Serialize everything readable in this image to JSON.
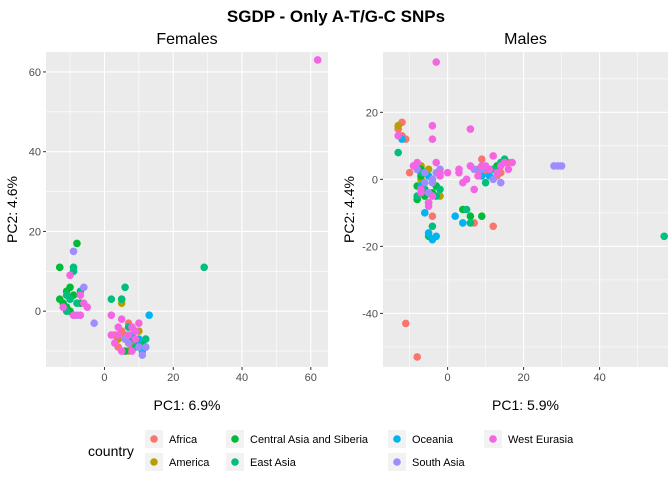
{
  "title": "SGDP - Only A-T/G-C SNPs",
  "legend": {
    "title": "country",
    "placement": "bottom",
    "entries": [
      {
        "name": "Africa",
        "color": "#F8766D"
      },
      {
        "name": "America",
        "color": "#B79F00"
      },
      {
        "name": "Central Asia and Siberia",
        "color": "#00BA38"
      },
      {
        "name": "East Asia",
        "color": "#00BF7D"
      },
      {
        "name": "Oceania",
        "color": "#00B4F0"
      },
      {
        "name": "South Asia",
        "color": "#9F8CFF"
      },
      {
        "name": "West Eurasia",
        "color": "#F564E3"
      }
    ]
  },
  "chart_data": [
    {
      "type": "scatter",
      "title": "Females",
      "xlabel": "PC1: 6.9%",
      "ylabel": "PC2: 4.6%",
      "xlim": [
        -17,
        65
      ],
      "ylim": [
        -14,
        65
      ],
      "xticks": [
        0,
        20,
        40,
        60
      ],
      "yticks": [
        0,
        20,
        40,
        60
      ],
      "grid": true,
      "series": [
        {
          "name": "Africa",
          "points": [
            [
              5,
              -5
            ],
            [
              7,
              -3
            ],
            [
              4,
              -9
            ],
            [
              8,
              -9
            ],
            [
              6,
              -6
            ],
            [
              9,
              -8
            ],
            [
              3,
              -6
            ],
            [
              11,
              -8
            ]
          ]
        },
        {
          "name": "America",
          "points": [
            [
              8,
              -4
            ],
            [
              5,
              2
            ],
            [
              10,
              -5
            ],
            [
              7,
              -10
            ],
            [
              6,
              -7
            ],
            [
              4,
              -7
            ]
          ]
        },
        {
          "name": "Central Asia and Siberia",
          "points": [
            [
              -13,
              11
            ],
            [
              -8,
              17
            ],
            [
              -11,
              5
            ],
            [
              -13,
              3
            ],
            [
              -11,
              1
            ],
            [
              -10,
              6
            ],
            [
              -12,
              2
            ],
            [
              -9,
              4
            ],
            [
              -10,
              0
            ],
            [
              -7,
              2
            ],
            [
              6,
              -10
            ],
            [
              8,
              -7
            ],
            [
              11,
              -8
            ],
            [
              5,
              3
            ]
          ]
        },
        {
          "name": "East Asia",
          "points": [
            [
              -9,
              10
            ],
            [
              -7,
              5
            ],
            [
              -9,
              11
            ],
            [
              -10,
              3
            ],
            [
              -11,
              4
            ],
            [
              -8,
              2
            ],
            [
              -11,
              0
            ],
            [
              -9,
              -1
            ],
            [
              2,
              3
            ],
            [
              5,
              3
            ],
            [
              6,
              6
            ],
            [
              29,
              11
            ],
            [
              7,
              -4
            ],
            [
              10,
              -8
            ],
            [
              12,
              -7
            ],
            [
              9,
              -9
            ]
          ]
        },
        {
          "name": "Oceania",
          "points": [
            [
              13,
              -1
            ],
            [
              8,
              -6
            ],
            [
              10,
              -7
            ],
            [
              12,
              -9
            ],
            [
              11,
              -10
            ]
          ]
        },
        {
          "name": "South Asia",
          "points": [
            [
              -9,
              15
            ],
            [
              -3,
              -3
            ],
            [
              -6,
              6
            ],
            [
              -8,
              -1
            ],
            [
              6,
              -7
            ],
            [
              9,
              -5
            ],
            [
              11,
              -11
            ],
            [
              12,
              -9
            ],
            [
              7,
              -8
            ],
            [
              10,
              -9
            ]
          ]
        },
        {
          "name": "West Eurasia",
          "points": [
            [
              62,
              63
            ],
            [
              -10,
              9
            ],
            [
              -7,
              4
            ],
            [
              -9,
              -1
            ],
            [
              -7,
              -1
            ],
            [
              -12,
              1
            ],
            [
              -6,
              2
            ],
            [
              -5,
              1
            ],
            [
              2,
              -1
            ],
            [
              2,
              -6
            ],
            [
              5,
              -2
            ],
            [
              4,
              -4
            ],
            [
              7,
              -6
            ],
            [
              8,
              -4
            ],
            [
              3,
              -8
            ],
            [
              9,
              -5
            ],
            [
              10,
              -3
            ],
            [
              8,
              -10
            ],
            [
              9,
              -7
            ],
            [
              4,
              -6
            ],
            [
              5,
              -10
            ]
          ]
        }
      ]
    },
    {
      "type": "scatter",
      "title": "Males",
      "xlabel": "PC1: 5.9%",
      "ylabel": "PC2: 4.4%",
      "xlim": [
        -17,
        58
      ],
      "ylim": [
        -56,
        38
      ],
      "xticks": [
        0,
        20,
        40,
        60
      ],
      "yticks": [
        -40,
        -20,
        0,
        20
      ],
      "grid": true,
      "series": [
        {
          "name": "Africa",
          "points": [
            [
              -12,
              17
            ],
            [
              -12,
              13
            ],
            [
              -13,
              15
            ],
            [
              -10,
              2
            ],
            [
              -7,
              4
            ],
            [
              -6,
              -3
            ],
            [
              -11,
              -43
            ],
            [
              -8,
              -53
            ],
            [
              -4,
              -11
            ],
            [
              7,
              -13
            ],
            [
              12,
              -14
            ],
            [
              8,
              3
            ],
            [
              13,
              1
            ],
            [
              -3,
              -2
            ],
            [
              10,
              2
            ],
            [
              14,
              2
            ],
            [
              16,
              5
            ],
            [
              9,
              6
            ],
            [
              -11,
              12
            ]
          ]
        },
        {
          "name": "America",
          "points": [
            [
              -13,
              16
            ],
            [
              -7,
              4
            ],
            [
              -5,
              3
            ],
            [
              -2,
              -5
            ],
            [
              -7,
              0
            ]
          ]
        },
        {
          "name": "Central Asia and Siberia",
          "points": [
            [
              -8,
              -2
            ],
            [
              -6,
              -5
            ],
            [
              -4,
              0
            ],
            [
              -7,
              3
            ],
            [
              -5,
              -7
            ],
            [
              -4,
              -4
            ],
            [
              -8,
              -6
            ],
            [
              4,
              -9
            ],
            [
              6,
              -11
            ],
            [
              9,
              -11
            ],
            [
              11,
              3
            ],
            [
              13,
              4
            ],
            [
              -6,
              -4
            ],
            [
              -3,
              -2
            ],
            [
              -8,
              3
            ],
            [
              -7,
              1
            ]
          ]
        },
        {
          "name": "East Asia",
          "points": [
            [
              -13,
              8
            ],
            [
              -7,
              2
            ],
            [
              -8,
              -5
            ],
            [
              -6,
              -3
            ],
            [
              -4,
              -14
            ],
            [
              -5,
              -17
            ],
            [
              5,
              -9
            ],
            [
              6,
              -13
            ],
            [
              57,
              -17
            ],
            [
              10,
              -1
            ],
            [
              12,
              3
            ],
            [
              14,
              5
            ],
            [
              15,
              6
            ],
            [
              -3,
              -5
            ],
            [
              -2,
              -3
            ]
          ]
        },
        {
          "name": "Oceania",
          "points": [
            [
              -12,
              12
            ],
            [
              -6,
              -10
            ],
            [
              -5,
              -16
            ],
            [
              -4,
              -18
            ],
            [
              -3,
              -17
            ],
            [
              2,
              -11
            ],
            [
              4,
              -13
            ],
            [
              9,
              1
            ],
            [
              11,
              1
            ],
            [
              -7,
              -2
            ],
            [
              -5,
              1
            ]
          ]
        },
        {
          "name": "South Asia",
          "points": [
            [
              -8,
              3
            ],
            [
              -6,
              2
            ],
            [
              -5,
              -4
            ],
            [
              -4,
              0
            ],
            [
              -3,
              2
            ],
            [
              -2,
              3
            ],
            [
              28,
              4
            ],
            [
              29,
              4
            ],
            [
              30,
              4
            ],
            [
              14,
              -1
            ],
            [
              12,
              0
            ],
            [
              7,
              3
            ],
            [
              9,
              3
            ],
            [
              -6,
              -1
            ],
            [
              -4,
              -1
            ]
          ]
        },
        {
          "name": "West Eurasia",
          "points": [
            [
              -3,
              35
            ],
            [
              -4,
              16
            ],
            [
              -13,
              13
            ],
            [
              -8,
              5
            ],
            [
              -7,
              -3
            ],
            [
              -5,
              -7
            ],
            [
              -5,
              -8
            ],
            [
              -4,
              12
            ],
            [
              -3,
              5
            ],
            [
              -2,
              2
            ],
            [
              0,
              2
            ],
            [
              3,
              3
            ],
            [
              4,
              -1
            ],
            [
              5,
              0
            ],
            [
              6,
              4
            ],
            [
              6,
              15
            ],
            [
              7,
              -3
            ],
            [
              8,
              1
            ],
            [
              9,
              4
            ],
            [
              10,
              4
            ],
            [
              11,
              3
            ],
            [
              12,
              7
            ],
            [
              13,
              2
            ],
            [
              14,
              4
            ],
            [
              15,
              5
            ],
            [
              17,
              5
            ],
            [
              -4,
              -5
            ],
            [
              -7,
              -4
            ],
            [
              -9,
              4
            ],
            [
              -2,
              1
            ],
            [
              16,
              3
            ],
            [
              3,
              2
            ]
          ]
        }
      ]
    }
  ]
}
